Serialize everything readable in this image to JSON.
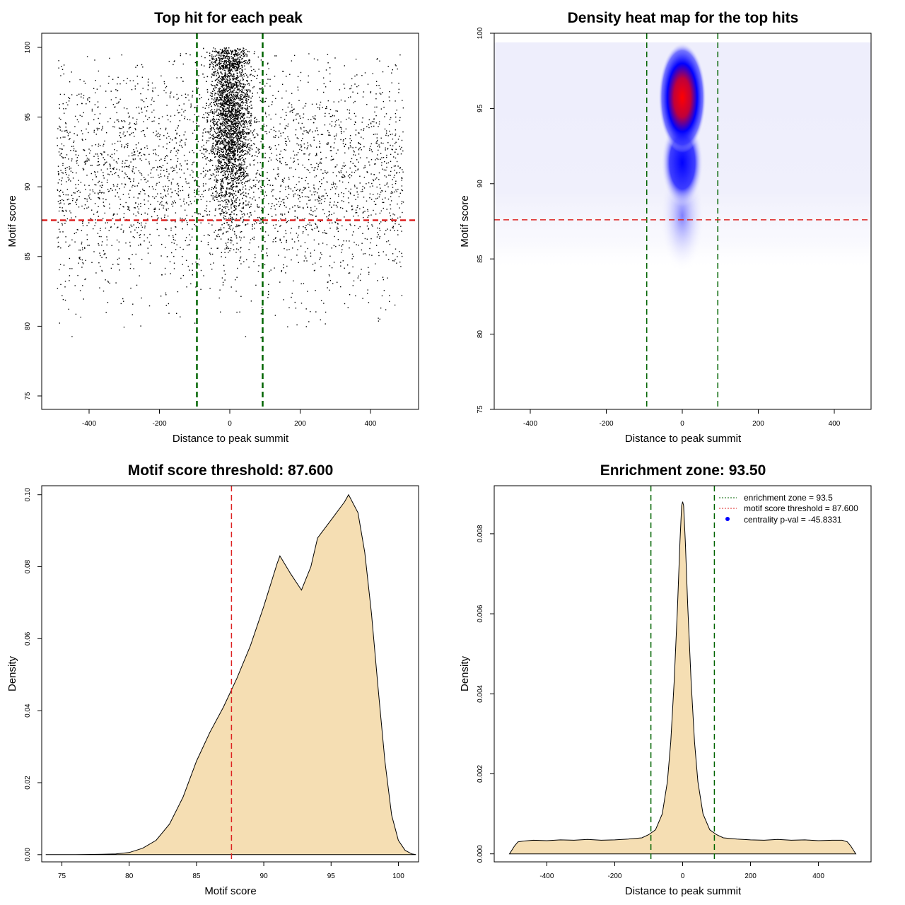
{
  "chart_data": [
    {
      "type": "scatter",
      "title": "Top hit for each peak",
      "xlabel": "Distance to peak summit",
      "ylabel": "Motif score",
      "xlim": [
        -500,
        500
      ],
      "ylim": [
        75,
        100
      ],
      "xticks": [
        -400,
        -200,
        0,
        200,
        400
      ],
      "yticks": [
        75,
        80,
        85,
        90,
        95,
        100
      ],
      "xtick_labels": [
        "-400",
        "-200",
        "0",
        "200",
        "400"
      ],
      "ytick_labels": [
        "75",
        "80",
        "85",
        "90",
        "95",
        "100"
      ],
      "points_description": "dense cloud of points; uniform background between x -490 and 490 (scores ~82-99.5), strong concentration centred at x=0 (scores ~86-100)",
      "vlines": {
        "values": [
          -93.5,
          93.5
        ],
        "color": "#006400",
        "style": "dashed"
      },
      "hline": {
        "value": 87.6,
        "color": "#dd2222",
        "style": "dashed"
      }
    },
    {
      "type": "heatmap",
      "title": "Density heat map for the top hits",
      "xlabel": "Distance to peak summit",
      "ylabel": "Motif score",
      "xlim": [
        -500,
        500
      ],
      "ylim": [
        75,
        100
      ],
      "xticks": [
        -400,
        -200,
        0,
        200,
        400
      ],
      "yticks": [
        75,
        80,
        85,
        90,
        95,
        100
      ],
      "xtick_labels": [
        "-400",
        "-200",
        "0",
        "200",
        "400"
      ],
      "ytick_labels": [
        "75",
        "80",
        "85",
        "90",
        "95",
        "100"
      ],
      "hotspot": {
        "x": 0,
        "y": 96.5,
        "color_low": "#ffffff",
        "color_mid": "#0000ff",
        "color_high": "#ff0000"
      },
      "vlines": {
        "values": [
          -93.5,
          93.5
        ],
        "color": "#006400",
        "style": "dashed"
      },
      "hline": {
        "value": 87.6,
        "color": "#dd2222",
        "style": "dashed"
      }
    },
    {
      "type": "area",
      "title": "Motif score threshold: 87.600",
      "xlabel": "Motif score",
      "ylabel": "Density",
      "xlim": [
        73.5,
        101.5
      ],
      "ylim": [
        -0.002,
        0.1025
      ],
      "xticks": [
        75,
        80,
        85,
        90,
        95,
        100
      ],
      "yticks": [
        0,
        0.02,
        0.04,
        0.06,
        0.08,
        0.1
      ],
      "xtick_labels": [
        "75",
        "80",
        "85",
        "90",
        "95",
        "100"
      ],
      "ytick_labels": [
        "0.00",
        "0.02",
        "0.04",
        "0.06",
        "0.08",
        "0.10"
      ],
      "x": [
        73.8,
        76,
        78,
        79,
        80,
        81,
        82,
        83,
        84,
        85,
        86,
        87,
        88,
        89,
        90,
        91,
        91.2,
        92,
        92.8,
        93.5,
        94,
        95,
        96,
        96.3,
        97,
        97.5,
        98,
        98.5,
        99,
        99.5,
        100,
        100.5,
        101,
        101.3
      ],
      "y": [
        0,
        0,
        0.0001,
        0.0002,
        0.0006,
        0.0018,
        0.004,
        0.0085,
        0.016,
        0.026,
        0.034,
        0.041,
        0.049,
        0.058,
        0.069,
        0.081,
        0.083,
        0.078,
        0.0735,
        0.08,
        0.088,
        0.093,
        0.098,
        0.1,
        0.095,
        0.084,
        0.067,
        0.046,
        0.026,
        0.011,
        0.004,
        0.0012,
        0.0002,
        0
      ],
      "fill": "#f5deb3",
      "vline": {
        "value": 87.6,
        "color": "#dd2222",
        "style": "dashed"
      }
    },
    {
      "type": "area",
      "title": "Enrichment zone: 93.50",
      "xlabel": "Distance to peak summit",
      "ylabel": "Density",
      "xlim": [
        -555,
        555
      ],
      "ylim": [
        -0.0002,
        0.0092
      ],
      "xticks": [
        -400,
        -200,
        0,
        200,
        400
      ],
      "yticks": [
        0,
        0.002,
        0.004,
        0.006,
        0.008
      ],
      "xtick_labels": [
        "-400",
        "-200",
        "0",
        "200",
        "400"
      ],
      "ytick_labels": [
        "0.000",
        "0.002",
        "0.004",
        "0.006",
        "0.008"
      ],
      "x": [
        -510,
        -495,
        -485,
        -470,
        -440,
        -400,
        -360,
        -320,
        -280,
        -240,
        -200,
        -160,
        -120,
        -100,
        -80,
        -60,
        -45,
        -35,
        -25,
        -15,
        -8,
        -3,
        0,
        3,
        8,
        15,
        25,
        35,
        45,
        60,
        80,
        100,
        120,
        160,
        200,
        240,
        280,
        320,
        360,
        400,
        440,
        470,
        485,
        495,
        510
      ],
      "y": [
        0,
        0.0002,
        0.0003,
        0.00032,
        0.00034,
        0.00033,
        0.00035,
        0.00034,
        0.00036,
        0.00034,
        0.00035,
        0.00037,
        0.0004,
        0.00048,
        0.0006,
        0.001,
        0.0018,
        0.0028,
        0.0043,
        0.0062,
        0.0078,
        0.0087,
        0.0088,
        0.0087,
        0.0078,
        0.0062,
        0.0043,
        0.0028,
        0.0018,
        0.001,
        0.0006,
        0.00048,
        0.0004,
        0.00037,
        0.00035,
        0.00034,
        0.00036,
        0.00034,
        0.00035,
        0.00033,
        0.00034,
        0.00034,
        0.0003,
        0.0002,
        0
      ],
      "fill": "#f5deb3",
      "vlines": {
        "values": [
          -93.5,
          93.5
        ],
        "color": "#006400",
        "style": "dashed"
      },
      "legend": {
        "position": "top-right",
        "entries": [
          {
            "label": "enrichment zone = 93.5",
            "color": "#006400",
            "symbol": "dotted-line"
          },
          {
            "label": "motif score threshold = 87.600",
            "color": "#dd2222",
            "symbol": "dotted-line"
          },
          {
            "label": "centrality p-val = -45.8331",
            "color": "#0000ff",
            "symbol": "point"
          }
        ]
      }
    }
  ]
}
